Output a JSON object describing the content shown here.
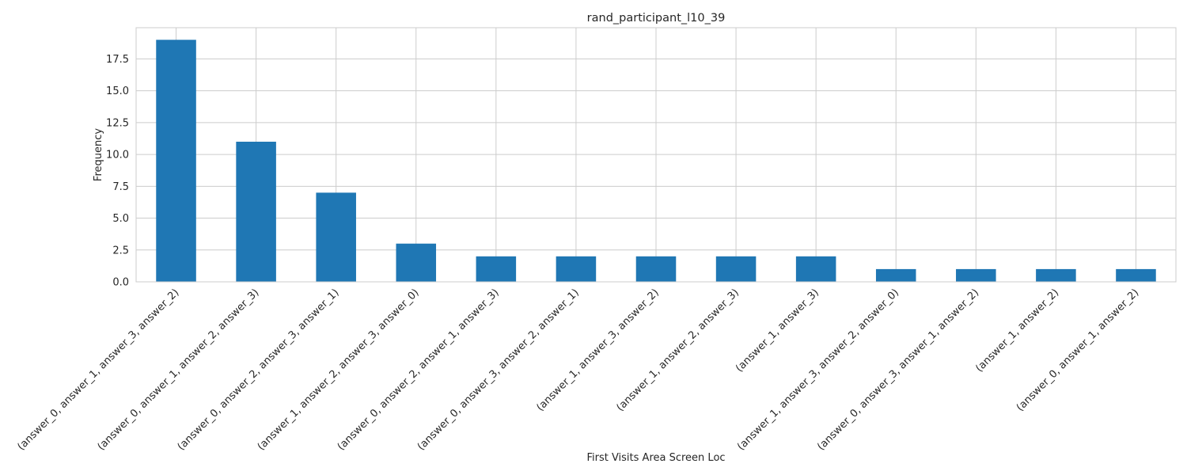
{
  "chart_data": {
    "type": "bar",
    "title": "rand_participant_l10_39",
    "xlabel": "First Visits Area Screen Loc",
    "ylabel": "Frequency",
    "categories": [
      "(answer_0, answer_1, answer_3, answer_2)",
      "(answer_0, answer_1, answer_2, answer_3)",
      "(answer_0, answer_2, answer_3, answer_1)",
      "(answer_1, answer_2, answer_3, answer_0)",
      "(answer_0, answer_2, answer_1, answer_3)",
      "(answer_0, answer_3, answer_2, answer_1)",
      "(answer_1, answer_3, answer_2)",
      "(answer_1, answer_2, answer_3)",
      "(answer_1, answer_3)",
      "(answer_1, answer_3, answer_2, answer_0)",
      "(answer_0, answer_3, answer_1, answer_2)",
      "(answer_1, answer_2)",
      "(answer_0, answer_1, answer_2)"
    ],
    "values": [
      19,
      11,
      7,
      3,
      2,
      2,
      2,
      2,
      2,
      1,
      1,
      1,
      1
    ],
    "ylim": [
      0,
      19.95
    ],
    "yticks": [
      0.0,
      2.5,
      5.0,
      7.5,
      10.0,
      12.5,
      15.0,
      17.5
    ],
    "ytick_labels": [
      "0.0",
      "2.5",
      "5.0",
      "7.5",
      "10.0",
      "12.5",
      "15.0",
      "17.5"
    ],
    "grid": true,
    "bar_color": "#1f77b4",
    "grid_color": "#cccccc"
  }
}
